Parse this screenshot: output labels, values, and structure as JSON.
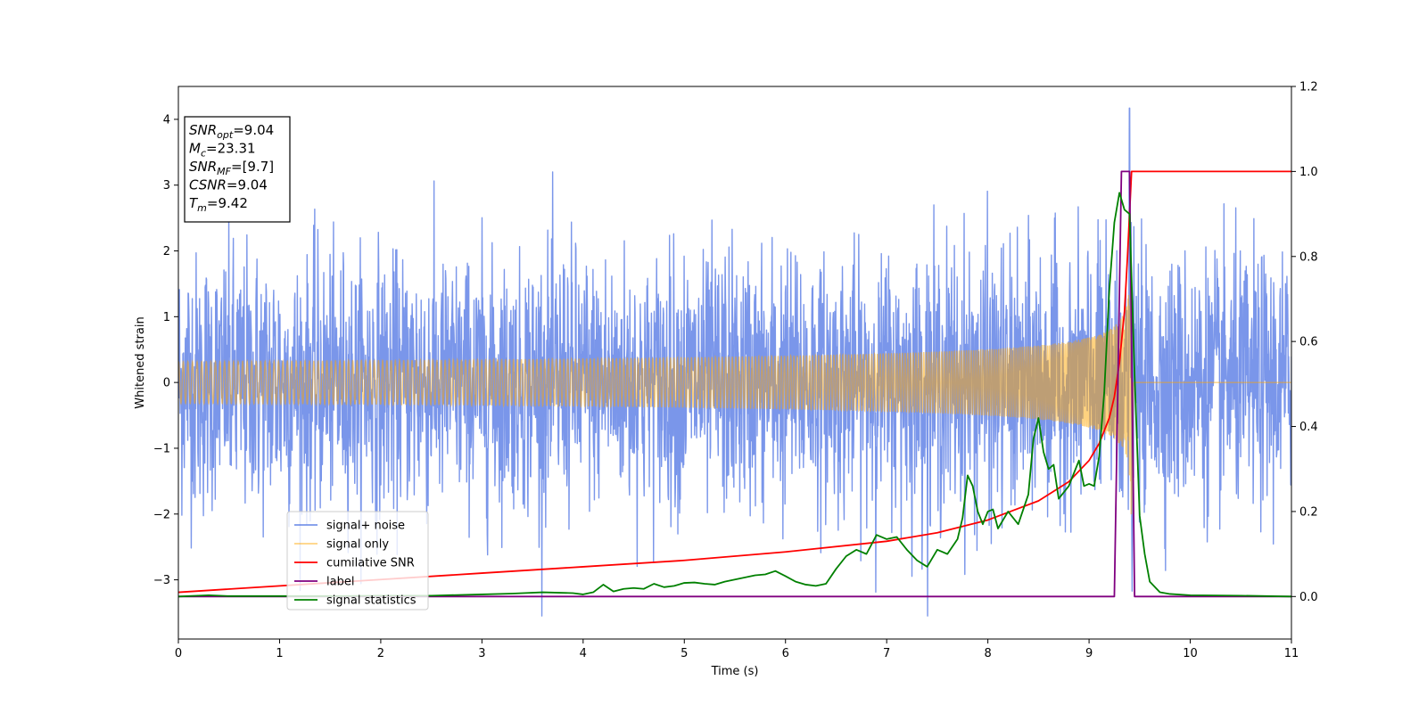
{
  "chart_data": {
    "type": "line",
    "xlabel": "Time (s)",
    "ylabel": "Whitened strain",
    "xlim": [
      0,
      11
    ],
    "ylim_left": [
      -3.9,
      4.5
    ],
    "ylim_right": [
      -0.1,
      1.2
    ],
    "x_ticks": [
      0,
      1,
      2,
      3,
      4,
      5,
      6,
      7,
      8,
      9,
      10,
      11
    ],
    "y_ticks_left": [
      -3,
      -2,
      -1,
      0,
      1,
      2,
      3,
      4
    ],
    "y_ticks_right": [
      0.0,
      0.2,
      0.4,
      0.6,
      0.8,
      1.0,
      1.2
    ],
    "y_tick_labels_left": [
      "−3",
      "−2",
      "−1",
      "0",
      "1",
      "2",
      "3",
      "4"
    ],
    "y_tick_labels_right": [
      "0.0",
      "0.2",
      "0.4",
      "0.6",
      "0.8",
      "1.0",
      "1.2"
    ],
    "grid": false,
    "legend_position": "lower-left",
    "info_box": {
      "lines": [
        {
          "main": "SNR",
          "sub": "opt",
          "value": "=9.04"
        },
        {
          "main": "M",
          "sub": "c",
          "value": "=23.31"
        },
        {
          "main": "SNR",
          "sub": "MF",
          "value": "=[9.7]"
        },
        {
          "main": "CSNR",
          "sub": "",
          "value": "=9.04"
        },
        {
          "main": "T",
          "sub": "m",
          "value": "=9.42"
        }
      ]
    },
    "series": [
      {
        "name": "signal+ noise",
        "axis": "left",
        "color": "#4169e1",
        "opacity": 0.7,
        "description_values": {
          "noise_std": 0.95,
          "peak": 4.17,
          "peak_time": 9.4
        }
      },
      {
        "name": "signal only",
        "axis": "left",
        "color": "#ffa500",
        "opacity": 0.5,
        "chirp": {
          "merger_time": 9.42,
          "peak_amplitude": 2.2
        }
      },
      {
        "name": "cumilative SNR",
        "axis": "right",
        "color": "#ff0000",
        "x": [
          0,
          1,
          2,
          3,
          4,
          5,
          6,
          7,
          7.5,
          8,
          8.5,
          8.8,
          9.0,
          9.1,
          9.2,
          9.25,
          9.3,
          9.35,
          9.38,
          9.42,
          11
        ],
        "y": [
          0.01,
          0.025,
          0.04,
          0.055,
          0.07,
          0.085,
          0.105,
          0.13,
          0.15,
          0.18,
          0.225,
          0.27,
          0.32,
          0.36,
          0.42,
          0.47,
          0.55,
          0.67,
          0.8,
          1.0,
          1.0
        ]
      },
      {
        "name": "label",
        "axis": "right",
        "color": "#800080",
        "x": [
          0,
          9.25,
          9.32,
          9.4,
          9.45,
          11
        ],
        "y": [
          0,
          0,
          1.0,
          1.0,
          0,
          0
        ]
      },
      {
        "name": "signal statistics",
        "axis": "right",
        "color": "#008000",
        "x": [
          0,
          0.3,
          0.5,
          1.0,
          1.5,
          2.0,
          2.5,
          3.0,
          3.3,
          3.6,
          3.9,
          4.0,
          4.1,
          4.2,
          4.3,
          4.4,
          4.5,
          4.6,
          4.7,
          4.8,
          4.9,
          5.0,
          5.1,
          5.2,
          5.3,
          5.4,
          5.5,
          5.6,
          5.7,
          5.8,
          5.9,
          6.0,
          6.1,
          6.2,
          6.3,
          6.4,
          6.5,
          6.6,
          6.7,
          6.8,
          6.9,
          7.0,
          7.1,
          7.2,
          7.3,
          7.4,
          7.5,
          7.6,
          7.7,
          7.75,
          7.8,
          7.85,
          7.9,
          7.95,
          8.0,
          8.05,
          8.1,
          8.2,
          8.3,
          8.4,
          8.45,
          8.5,
          8.55,
          8.6,
          8.65,
          8.7,
          8.75,
          8.8,
          8.85,
          8.9,
          8.95,
          9.0,
          9.05,
          9.1,
          9.15,
          9.2,
          9.25,
          9.3,
          9.35,
          9.4,
          9.45,
          9.5,
          9.55,
          9.6,
          9.7,
          9.8,
          10.0,
          10.5,
          11.0
        ],
        "y": [
          0.0,
          0.003,
          0.001,
          0.001,
          0.001,
          0.002,
          0.002,
          0.005,
          0.007,
          0.01,
          0.008,
          0.005,
          0.01,
          0.028,
          0.012,
          0.018,
          0.02,
          0.018,
          0.03,
          0.022,
          0.025,
          0.032,
          0.033,
          0.03,
          0.028,
          0.035,
          0.04,
          0.045,
          0.05,
          0.052,
          0.06,
          0.048,
          0.035,
          0.028,
          0.025,
          0.03,
          0.065,
          0.095,
          0.11,
          0.1,
          0.145,
          0.135,
          0.14,
          0.11,
          0.085,
          0.07,
          0.11,
          0.1,
          0.135,
          0.185,
          0.285,
          0.26,
          0.2,
          0.17,
          0.2,
          0.205,
          0.16,
          0.2,
          0.17,
          0.24,
          0.37,
          0.42,
          0.34,
          0.3,
          0.31,
          0.23,
          0.245,
          0.26,
          0.29,
          0.32,
          0.26,
          0.265,
          0.26,
          0.33,
          0.48,
          0.72,
          0.88,
          0.95,
          0.91,
          0.9,
          0.52,
          0.19,
          0.1,
          0.035,
          0.01,
          0.006,
          0.003,
          0.002,
          0.0
        ]
      }
    ]
  }
}
